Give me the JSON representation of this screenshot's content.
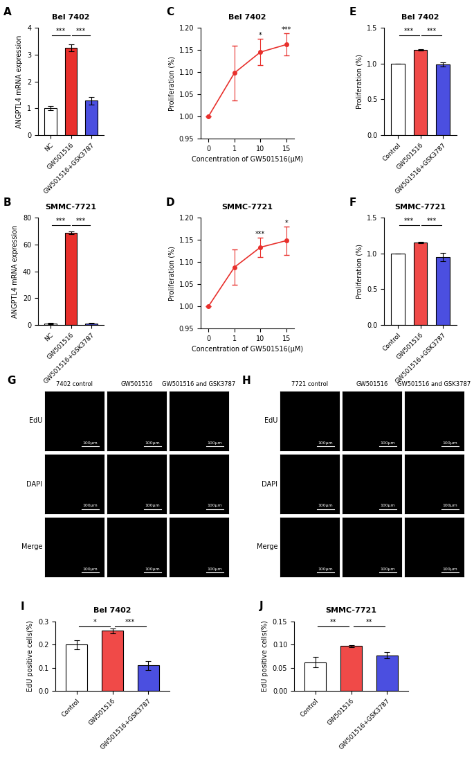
{
  "chart_data": [
    {
      "panel": "A",
      "type": "bar",
      "title": "Bel 7402",
      "y_label": "ANGPTL4 mRNA expression",
      "categories": [
        "NC",
        "GW501516",
        "GW501516+GSK3787"
      ],
      "values": [
        1.0,
        3.25,
        1.28
      ],
      "errors": [
        0.08,
        0.12,
        0.15
      ],
      "colors": [
        "#ffffff",
        "#e8302c",
        "#4b4fe0"
      ],
      "ylim": [
        0,
        4
      ],
      "yticks": [
        0,
        1,
        2,
        3,
        4
      ],
      "annotations": [
        {
          "from": 0,
          "to": 1,
          "text": "***"
        },
        {
          "from": 1,
          "to": 2,
          "text": "***"
        }
      ]
    },
    {
      "panel": "B",
      "type": "bar",
      "title": "SMMC-7721",
      "y_label": "ANGPTL4 mRNA expression",
      "categories": [
        "NC",
        "GW501516",
        "GW501516+GSK3787"
      ],
      "values": [
        1.0,
        68.5,
        1.2
      ],
      "errors": [
        0.5,
        1.0,
        0.3
      ],
      "colors": [
        "#ffffff",
        "#e8302c",
        "#4b4fe0"
      ],
      "ylim": [
        0,
        80
      ],
      "yticks": [
        0,
        20,
        40,
        60,
        80
      ],
      "annotations": [
        {
          "from": 0,
          "to": 1,
          "text": "***"
        },
        {
          "from": 1,
          "to": 2,
          "text": "***"
        }
      ]
    },
    {
      "panel": "C",
      "type": "line",
      "title": "Bel 7402",
      "y_label": "Proliferation (%)",
      "x_label": "Concentration of GW501516(μM)",
      "categories": [
        "0",
        "1",
        "10",
        "15"
      ],
      "values": [
        1.0,
        1.098,
        1.145,
        1.162
      ],
      "errors": [
        0,
        0.062,
        0.03,
        0.025
      ],
      "color": "#e8302c",
      "marker": "o",
      "ylim": [
        0.95,
        1.2
      ],
      "yticks": [
        0.95,
        {
          "value": 1.0,
          "label": "1.00"
        },
        1.05,
        {
          "value": 1.1,
          "label": "1.10"
        },
        1.15,
        {
          "value": 1.2,
          "label": "1.20"
        }
      ],
      "annotations": [
        {
          "at": 2,
          "text": "*"
        },
        {
          "at": 3,
          "text": "***"
        }
      ]
    },
    {
      "panel": "D",
      "type": "line",
      "title": "SMMC-7721",
      "y_label": "Proliferation (%)",
      "x_label": "Concentration of GW501516(μM)",
      "categories": [
        "0",
        "1",
        "10",
        "15"
      ],
      "values": [
        1.0,
        1.088,
        1.133,
        1.148
      ],
      "errors": [
        0,
        0.04,
        0.022,
        0.032
      ],
      "color": "#e8302c",
      "marker": "o",
      "ylim": [
        0.95,
        1.2
      ],
      "yticks": [
        0.95,
        {
          "value": 1.0,
          "label": "1.00"
        },
        1.05,
        {
          "value": 1.1,
          "label": "1.10"
        },
        1.15,
        {
          "value": 1.2,
          "label": "1.20"
        }
      ],
      "annotations": [
        {
          "at": 2,
          "text": "***"
        },
        {
          "at": 3,
          "text": "*"
        }
      ]
    },
    {
      "panel": "E",
      "type": "bar",
      "title": "Bel 7402",
      "y_label": "Proliferation (%)",
      "categories": [
        "Control",
        "GW501516",
        "GW501516+GSK3787"
      ],
      "values": [
        1.0,
        1.19,
        0.99
      ],
      "errors": [
        0,
        0.01,
        0.03
      ],
      "colors": [
        "#ffffff",
        "#f04a48",
        "#4b4fe0"
      ],
      "ylim": [
        0,
        1.5
      ],
      "yticks": [
        {
          "value": 0,
          "label": "0.0"
        },
        0.5,
        {
          "value": 1,
          "label": "1.0"
        },
        1.5
      ],
      "annotations": [
        {
          "from": 0,
          "to": 1,
          "text": "***"
        },
        {
          "from": 1,
          "to": 2,
          "text": "***"
        }
      ]
    },
    {
      "panel": "F",
      "type": "bar",
      "title": "SMMC-7721",
      "y_label": "Proliferation (%)",
      "categories": [
        "Control",
        "GW501516",
        "GW501516+GSK3787"
      ],
      "values": [
        1.0,
        1.15,
        0.95
      ],
      "errors": [
        0,
        0.01,
        0.06
      ],
      "colors": [
        "#ffffff",
        "#f04a48",
        "#4b4fe0"
      ],
      "ylim": [
        0,
        1.5
      ],
      "yticks": [
        {
          "value": 0,
          "label": "0.0"
        },
        0.5,
        {
          "value": 1,
          "label": "1.0"
        },
        1.5
      ],
      "annotations": [
        {
          "from": 0,
          "to": 1,
          "text": "***"
        },
        {
          "from": 1,
          "to": 2,
          "text": "***"
        }
      ]
    },
    {
      "panel": "I",
      "type": "bar",
      "title": "Bel 7402",
      "y_label": "EdU positive cells(%)",
      "categories": [
        "Control",
        "GW501516",
        "GW501516+GSK3787"
      ],
      "values": [
        0.2,
        0.26,
        0.11
      ],
      "errors": [
        0.02,
        0.01,
        0.02
      ],
      "colors": [
        "#ffffff",
        "#f04a48",
        "#4b4fe0"
      ],
      "ylim": [
        0,
        0.3
      ],
      "yticks": [
        {
          "value": 0,
          "label": "0.0"
        },
        0.1,
        0.2,
        0.3
      ],
      "annotations": [
        {
          "from": 0,
          "to": 1,
          "text": "*"
        },
        {
          "from": 1,
          "to": 2,
          "text": "***"
        }
      ]
    },
    {
      "panel": "J",
      "type": "bar",
      "title": "SMMC-7721",
      "y_label": "EdU positive cells(%)",
      "categories": [
        "Control",
        "GW501516",
        "GW501516+GSK3787"
      ],
      "values": [
        0.062,
        0.097,
        0.077
      ],
      "errors": [
        0.011,
        0.002,
        0.007
      ],
      "colors": [
        "#ffffff",
        "#f04a48",
        "#4b4fe0"
      ],
      "ylim": [
        0,
        0.15
      ],
      "yticks": [
        {
          "value": 0,
          "label": "0.00"
        },
        0.05,
        {
          "value": 0.1,
          "label": "0.10"
        },
        0.15
      ],
      "annotations": [
        {
          "from": 0,
          "to": 1,
          "text": "**"
        },
        {
          "from": 1,
          "to": 2,
          "text": "**"
        }
      ]
    }
  ],
  "images": [
    {
      "panel": "G",
      "columns": [
        "7402 control",
        "GW501516",
        "GW501516 and GSK3787"
      ],
      "rows": [
        "EdU",
        "DAPI",
        "Merge"
      ],
      "scale_bar": "100μm"
    },
    {
      "panel": "H",
      "columns": [
        "7721 control",
        "GW501516",
        "GW501516 and GSK3787"
      ],
      "rows": [
        "EdU",
        "DAPI",
        "Merge"
      ],
      "scale_bar": "100μm"
    }
  ]
}
